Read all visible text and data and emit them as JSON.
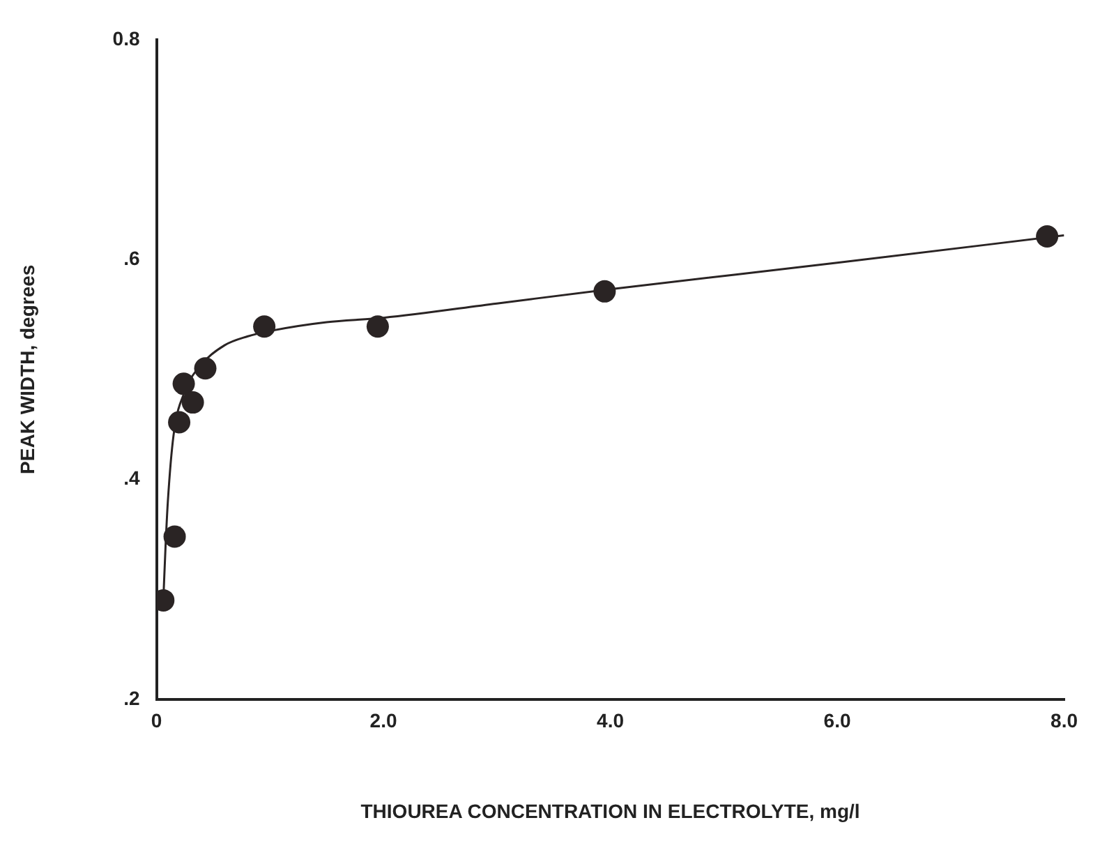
{
  "chart_data": {
    "type": "scatter",
    "xlabel": "THIOUREA CONCENTRATION IN ELECTROLYTE, mg/l",
    "ylabel": "PEAK WIDTH, degrees",
    "xlim": [
      0,
      8
    ],
    "xticks": [
      0,
      {
        "value": 2,
        "label": "2.0"
      },
      {
        "value": 4,
        "label": "4.0"
      },
      {
        "value": 6,
        "label": "6.0"
      },
      {
        "value": 8,
        "label": "8.0"
      }
    ],
    "ylim": [
      0.2,
      0.8
    ],
    "yticks": [
      {
        "value": 0.2,
        "label": ".2"
      },
      {
        "value": 0.4,
        "label": ".4"
      },
      {
        "value": 0.6,
        "label": ".6"
      },
      {
        "value": 0.8,
        "label": "0.8"
      }
    ],
    "grid": false,
    "legend": false,
    "series": [
      {
        "color": "#2a2424",
        "marker": "circle",
        "x": [
          0.06,
          0.16,
          0.2,
          0.24,
          0.32,
          0.43,
          0.95,
          1.95,
          3.95,
          7.85
        ],
        "values": [
          0.29,
          0.348,
          0.452,
          0.487,
          0.47,
          0.501,
          0.539,
          0.539,
          0.571,
          0.621
        ]
      },
      {
        "type": "line",
        "color": "#2a2424",
        "marker": "none",
        "x": [
          0.06,
          0.08,
          0.1,
          0.15,
          0.25,
          0.4,
          0.6,
          0.8,
          1.0,
          1.5,
          2,
          3,
          4,
          6,
          8
        ],
        "values": [
          0.29,
          0.34,
          0.38,
          0.44,
          0.48,
          0.505,
          0.522,
          0.53,
          0.535,
          0.543,
          0.547,
          0.56,
          0.573,
          0.597,
          0.622
        ]
      }
    ]
  }
}
